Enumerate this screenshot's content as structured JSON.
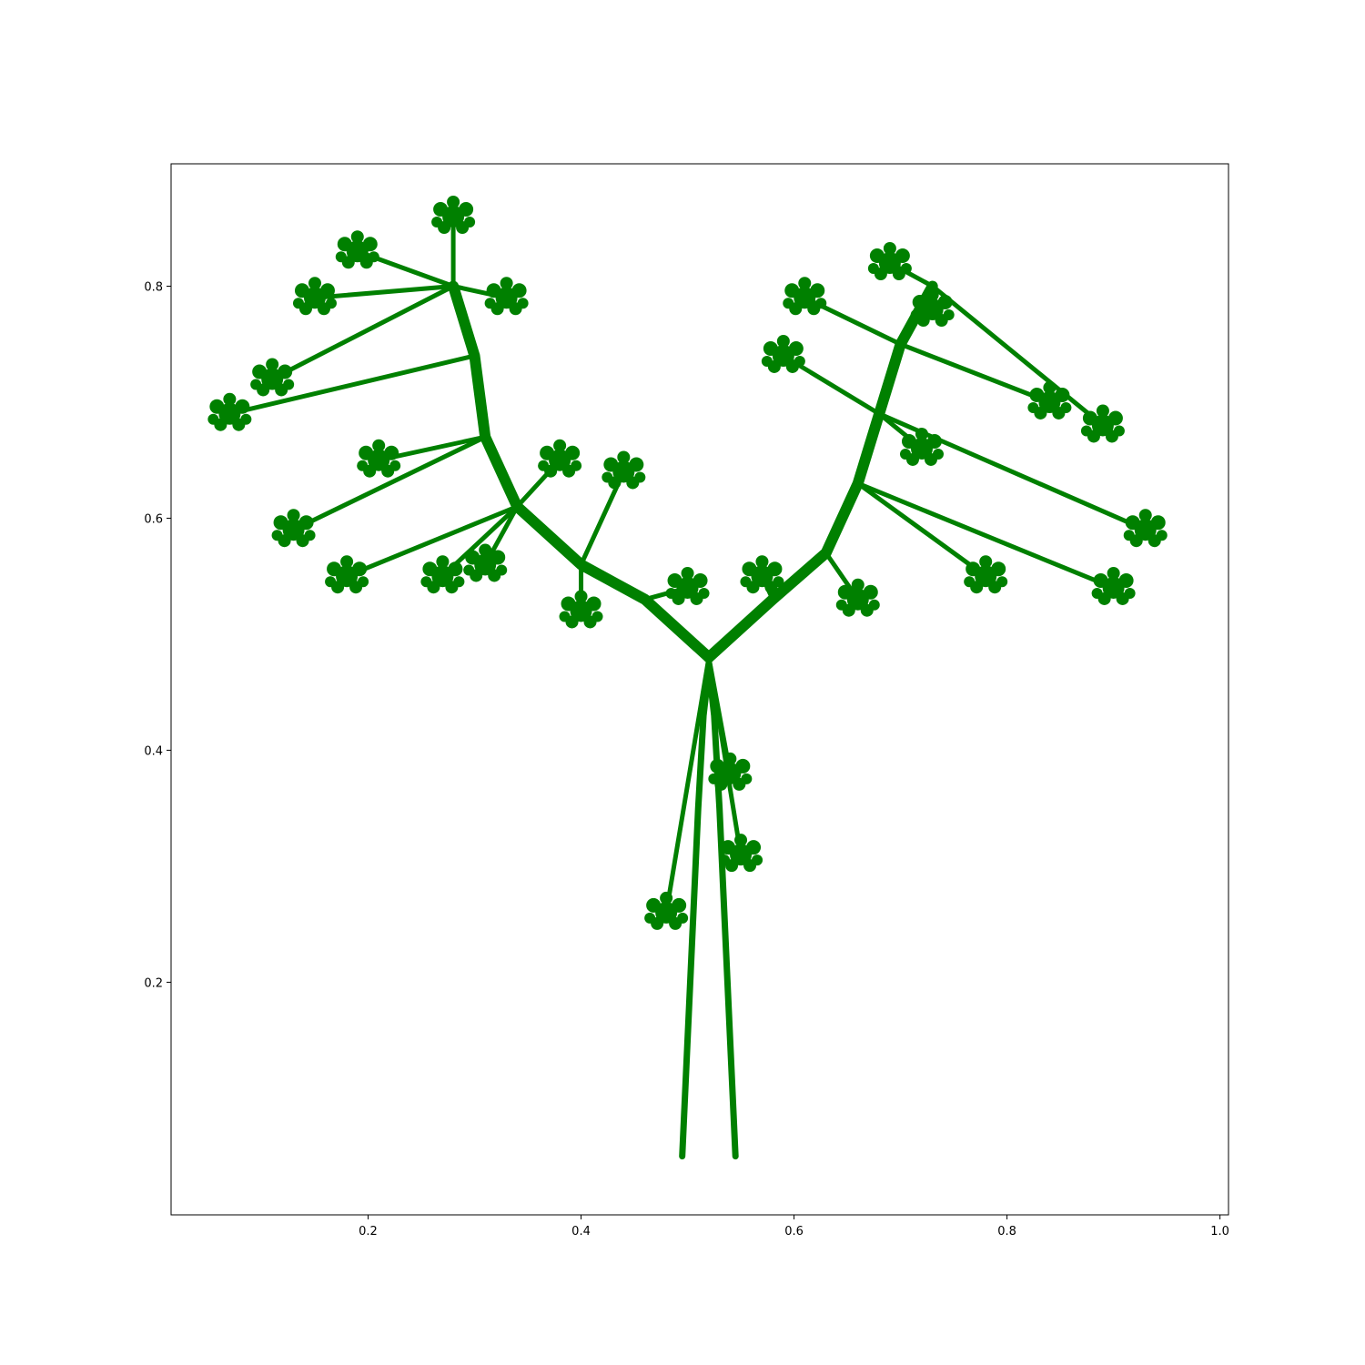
{
  "chart_data": {
    "type": "scatter",
    "title": "",
    "xlabel": "",
    "ylabel": "",
    "xlim": [
      0.015,
      1.008
    ],
    "ylim": [
      -0.0005,
      0.9055
    ],
    "xticks": [
      0.2,
      0.4,
      0.6,
      0.8,
      1.0
    ],
    "xtick_labels": [
      "0.2",
      "0.4",
      "0.6",
      "0.8",
      "1.0"
    ],
    "yticks": [
      0.2,
      0.4,
      0.6,
      0.8
    ],
    "ytick_labels": [
      "0.2",
      "0.4",
      "0.6",
      "0.8"
    ],
    "grid": false,
    "legend": "none",
    "marker_color": "#008000",
    "series": [
      {
        "description_kind": "fractal tree (iterated function system point cloud)",
        "trunk": {
          "left_strand": [
            [
              0.495,
              0.05
            ],
            [
              0.5,
              0.15
            ],
            [
              0.505,
              0.25
            ],
            [
              0.51,
              0.35
            ],
            [
              0.515,
              0.43
            ],
            [
              0.52,
              0.47
            ]
          ],
          "right_strand": [
            [
              0.545,
              0.05
            ],
            [
              0.54,
              0.15
            ],
            [
              0.535,
              0.25
            ],
            [
              0.53,
              0.35
            ],
            [
              0.525,
              0.43
            ],
            [
              0.52,
              0.47
            ]
          ]
        },
        "fork_point": [
          0.52,
          0.48
        ],
        "left_main_branch": [
          [
            0.52,
            0.48
          ],
          [
            0.46,
            0.53
          ],
          [
            0.4,
            0.56
          ],
          [
            0.34,
            0.61
          ],
          [
            0.31,
            0.67
          ],
          [
            0.3,
            0.74
          ],
          [
            0.28,
            0.8
          ]
        ],
        "right_main_branch": [
          [
            0.52,
            0.48
          ],
          [
            0.58,
            0.53
          ],
          [
            0.63,
            0.57
          ],
          [
            0.66,
            0.63
          ],
          [
            0.68,
            0.69
          ],
          [
            0.7,
            0.75
          ],
          [
            0.73,
            0.8
          ]
        ],
        "leaf_clusters": [
          [
            0.19,
            0.83
          ],
          [
            0.28,
            0.86
          ],
          [
            0.33,
            0.79
          ],
          [
            0.15,
            0.79
          ],
          [
            0.07,
            0.69
          ],
          [
            0.11,
            0.72
          ],
          [
            0.21,
            0.65
          ],
          [
            0.13,
            0.59
          ],
          [
            0.18,
            0.55
          ],
          [
            0.27,
            0.55
          ],
          [
            0.38,
            0.65
          ],
          [
            0.44,
            0.64
          ],
          [
            0.31,
            0.56
          ],
          [
            0.4,
            0.52
          ],
          [
            0.5,
            0.54
          ],
          [
            0.57,
            0.55
          ],
          [
            0.61,
            0.79
          ],
          [
            0.69,
            0.82
          ],
          [
            0.73,
            0.78
          ],
          [
            0.59,
            0.74
          ],
          [
            0.84,
            0.7
          ],
          [
            0.89,
            0.68
          ],
          [
            0.93,
            0.59
          ],
          [
            0.9,
            0.54
          ],
          [
            0.78,
            0.55
          ],
          [
            0.66,
            0.53
          ],
          [
            0.72,
            0.66
          ],
          [
            0.48,
            0.26
          ],
          [
            0.55,
            0.31
          ],
          [
            0.54,
            0.38
          ]
        ]
      }
    ]
  }
}
